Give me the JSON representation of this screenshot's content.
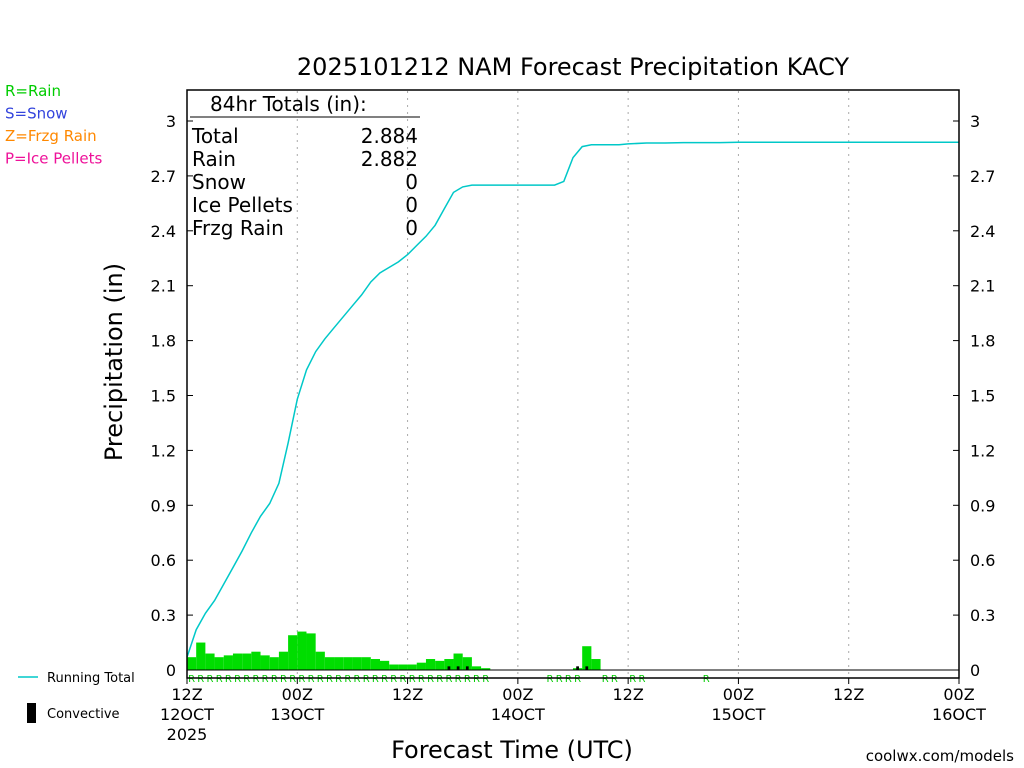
{
  "chart_data": {
    "type": "bar",
    "title": "2025101212 NAM Forecast Precipitation KACY",
    "ylabel": "Precipitation (in)",
    "xlabel": "Forecast Time (UTC)",
    "ylim": [
      0,
      3.2
    ],
    "xlim_hours": [
      0,
      84
    ],
    "y_ticks": [
      0,
      0.3,
      0.6,
      0.9,
      1.2,
      1.5,
      1.8,
      2.1,
      2.4,
      2.7,
      3
    ],
    "y_tick_labels": [
      "0",
      "0.3",
      "0.6",
      "0.9",
      "1.2",
      "1.5",
      "1.8",
      "2.1",
      "2.4",
      "2.7",
      "3"
    ],
    "x_ticks": [
      {
        "hour": 0,
        "time": "12Z",
        "date": "12OCT",
        "year": "2025"
      },
      {
        "hour": 12,
        "time": "00Z",
        "date": "13OCT",
        "year": ""
      },
      {
        "hour": 24,
        "time": "12Z",
        "date": "",
        "year": ""
      },
      {
        "hour": 36,
        "time": "00Z",
        "date": "14OCT",
        "year": ""
      },
      {
        "hour": 48,
        "time": "12Z",
        "date": "",
        "year": ""
      },
      {
        "hour": 60,
        "time": "00Z",
        "date": "15OCT",
        "year": ""
      },
      {
        "hour": 72,
        "time": "12Z",
        "date": "",
        "year": ""
      },
      {
        "hour": 84,
        "time": "00Z",
        "date": "16OCT",
        "year": ""
      }
    ],
    "hourly_precip": [
      0.07,
      0.15,
      0.09,
      0.07,
      0.08,
      0.09,
      0.09,
      0.1,
      0.08,
      0.07,
      0.1,
      0.19,
      0.21,
      0.2,
      0.1,
      0.07,
      0.07,
      0.07,
      0.07,
      0.07,
      0.06,
      0.05,
      0.03,
      0.03,
      0.03,
      0.04,
      0.06,
      0.05,
      0.06,
      0.09,
      0.07,
      0.02,
      0.01,
      0,
      0,
      0,
      0,
      0,
      0,
      0,
      0,
      0,
      0.01,
      0.13,
      0.06,
      0,
      0,
      0,
      0,
      0,
      0,
      0,
      0,
      0,
      0,
      0,
      0,
      0,
      0,
      0,
      0,
      0,
      0,
      0,
      0,
      0,
      0,
      0,
      0,
      0,
      0,
      0,
      0,
      0,
      0,
      0,
      0,
      0,
      0,
      0,
      0,
      0,
      0,
      0
    ],
    "convective": [
      0,
      0,
      0,
      0,
      0,
      0,
      0,
      0,
      0,
      0,
      0,
      0,
      0,
      0,
      0,
      0,
      0,
      0,
      0,
      0,
      0,
      0,
      0,
      0,
      0,
      0,
      0,
      0,
      0.02,
      0.02,
      0.02,
      0,
      0,
      0,
      0,
      0,
      0,
      0,
      0,
      0,
      0,
      0,
      0.02,
      0.02,
      0,
      0,
      0,
      0,
      0,
      0,
      0,
      0,
      0,
      0,
      0,
      0,
      0,
      0,
      0,
      0,
      0,
      0,
      0,
      0,
      0,
      0,
      0,
      0,
      0,
      0,
      0,
      0,
      0,
      0,
      0,
      0,
      0,
      0,
      0,
      0,
      0,
      0,
      0,
      0
    ],
    "running_total": {
      "hours": [
        0,
        1,
        2,
        3,
        4,
        5,
        6,
        7,
        8,
        9,
        10,
        11,
        12,
        13,
        14,
        15,
        16,
        17,
        18,
        19,
        20,
        21,
        22,
        23,
        24,
        25,
        26,
        27,
        28,
        29,
        30,
        31,
        32,
        33,
        34,
        35,
        36,
        37,
        38,
        39,
        40,
        41,
        42,
        43,
        44,
        45,
        46,
        47,
        48,
        50,
        52,
        54,
        56,
        58,
        60,
        64,
        68,
        72,
        76,
        80,
        84
      ],
      "values": [
        0.07,
        0.22,
        0.31,
        0.38,
        0.47,
        0.56,
        0.65,
        0.75,
        0.84,
        0.91,
        1.02,
        1.24,
        1.48,
        1.64,
        1.74,
        1.81,
        1.87,
        1.93,
        1.99,
        2.05,
        2.12,
        2.17,
        2.2,
        2.23,
        2.27,
        2.32,
        2.37,
        2.43,
        2.52,
        2.61,
        2.64,
        2.65,
        2.65,
        2.65,
        2.65,
        2.65,
        2.65,
        2.65,
        2.65,
        2.65,
        2.65,
        2.67,
        2.8,
        2.86,
        2.87,
        2.87,
        2.87,
        2.87,
        2.875,
        2.88,
        2.88,
        2.882,
        2.882,
        2.882,
        2.884,
        2.884,
        2.884,
        2.884,
        2.884,
        2.884,
        2.884
      ]
    },
    "precip_type_codes": {
      "hours": [
        0,
        1,
        2,
        3,
        4,
        5,
        6,
        7,
        8,
        9,
        10,
        11,
        12,
        13,
        14,
        15,
        16,
        17,
        18,
        19,
        20,
        21,
        22,
        23,
        24,
        25,
        26,
        27,
        28,
        29,
        30,
        31,
        32,
        39,
        40,
        41,
        42,
        45,
        46,
        48,
        49,
        56
      ],
      "code": "R"
    },
    "totals_box": {
      "heading": "84hr Totals (in):",
      "rows": [
        {
          "label": "Total",
          "value": "2.884"
        },
        {
          "label": "Rain",
          "value": "2.882"
        },
        {
          "label": "Snow",
          "value": "0"
        },
        {
          "label": "Ice Pellets",
          "value": "0"
        },
        {
          "label": "Frzg Rain",
          "value": "0"
        }
      ]
    },
    "type_legend": [
      {
        "text": "R=Rain",
        "color": "#00cc00"
      },
      {
        "text": "S=Snow",
        "color": "#3344dd"
      },
      {
        "text": "Z=Frzg Rain",
        "color": "#ff8800"
      },
      {
        "text": "P=Ice Pellets",
        "color": "#ee1199"
      }
    ],
    "series_legend": [
      {
        "name": "Running Total",
        "color": "#00c8c8"
      },
      {
        "name": "Convective",
        "color": "#000000"
      }
    ],
    "bar_color": "#00dd00",
    "line_color": "#00c8c8",
    "code_color": "#00cc00",
    "credit": "coolwx.com/models"
  }
}
